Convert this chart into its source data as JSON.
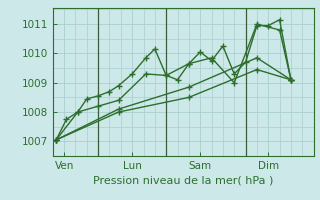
{
  "background_color": "#cce8e8",
  "grid_color": "#aacece",
  "line_color": "#2d6e2d",
  "vline_color": "#3d5c3d",
  "xlabel": "Pression niveau de la mer( hPa )",
  "yticks": [
    1007,
    1008,
    1009,
    1010,
    1011
  ],
  "xtick_labels": [
    "Ven",
    "Lun",
    "Sam",
    "Dim"
  ],
  "xtick_positions": [
    0.5,
    3.5,
    6.5,
    9.5
  ],
  "ylim": [
    1006.55,
    1011.55
  ],
  "xlim": [
    0,
    11.5
  ],
  "vline_positions": [
    2.0,
    5.0,
    8.5
  ],
  "series": [
    [
      0.15,
      1007.05,
      0.6,
      1007.75,
      1.1,
      1008.0,
      1.5,
      1008.45,
      2.0,
      1008.55,
      2.5,
      1008.7,
      2.9,
      1008.9,
      3.5,
      1009.3,
      4.1,
      1009.85,
      4.5,
      1010.15,
      5.0,
      1009.25,
      5.5,
      1009.1,
      6.0,
      1009.65,
      6.5,
      1010.05,
      7.0,
      1009.75,
      7.5,
      1010.25,
      8.0,
      1009.3,
      8.5,
      1009.7,
      9.0,
      1010.95,
      9.5,
      1010.95,
      10.0,
      1011.15,
      10.5,
      1009.1
    ],
    [
      0.15,
      1007.05,
      1.1,
      1008.0,
      2.0,
      1008.2,
      2.9,
      1008.4,
      4.1,
      1009.3,
      5.0,
      1009.25,
      6.0,
      1009.65,
      7.0,
      1009.85,
      8.0,
      1009.0,
      9.0,
      1011.0,
      10.0,
      1010.8,
      10.5,
      1009.1
    ],
    [
      0.15,
      1007.05,
      2.9,
      1008.1,
      6.0,
      1008.85,
      9.0,
      1009.85,
      10.5,
      1009.1
    ],
    [
      0.15,
      1007.05,
      2.9,
      1008.0,
      6.0,
      1008.5,
      9.0,
      1009.45,
      10.5,
      1009.1
    ]
  ],
  "xlabel_fontsize": 8,
  "tick_fontsize": 7.5,
  "marker": "+",
  "markersize": 5,
  "linewidth": 1.0
}
